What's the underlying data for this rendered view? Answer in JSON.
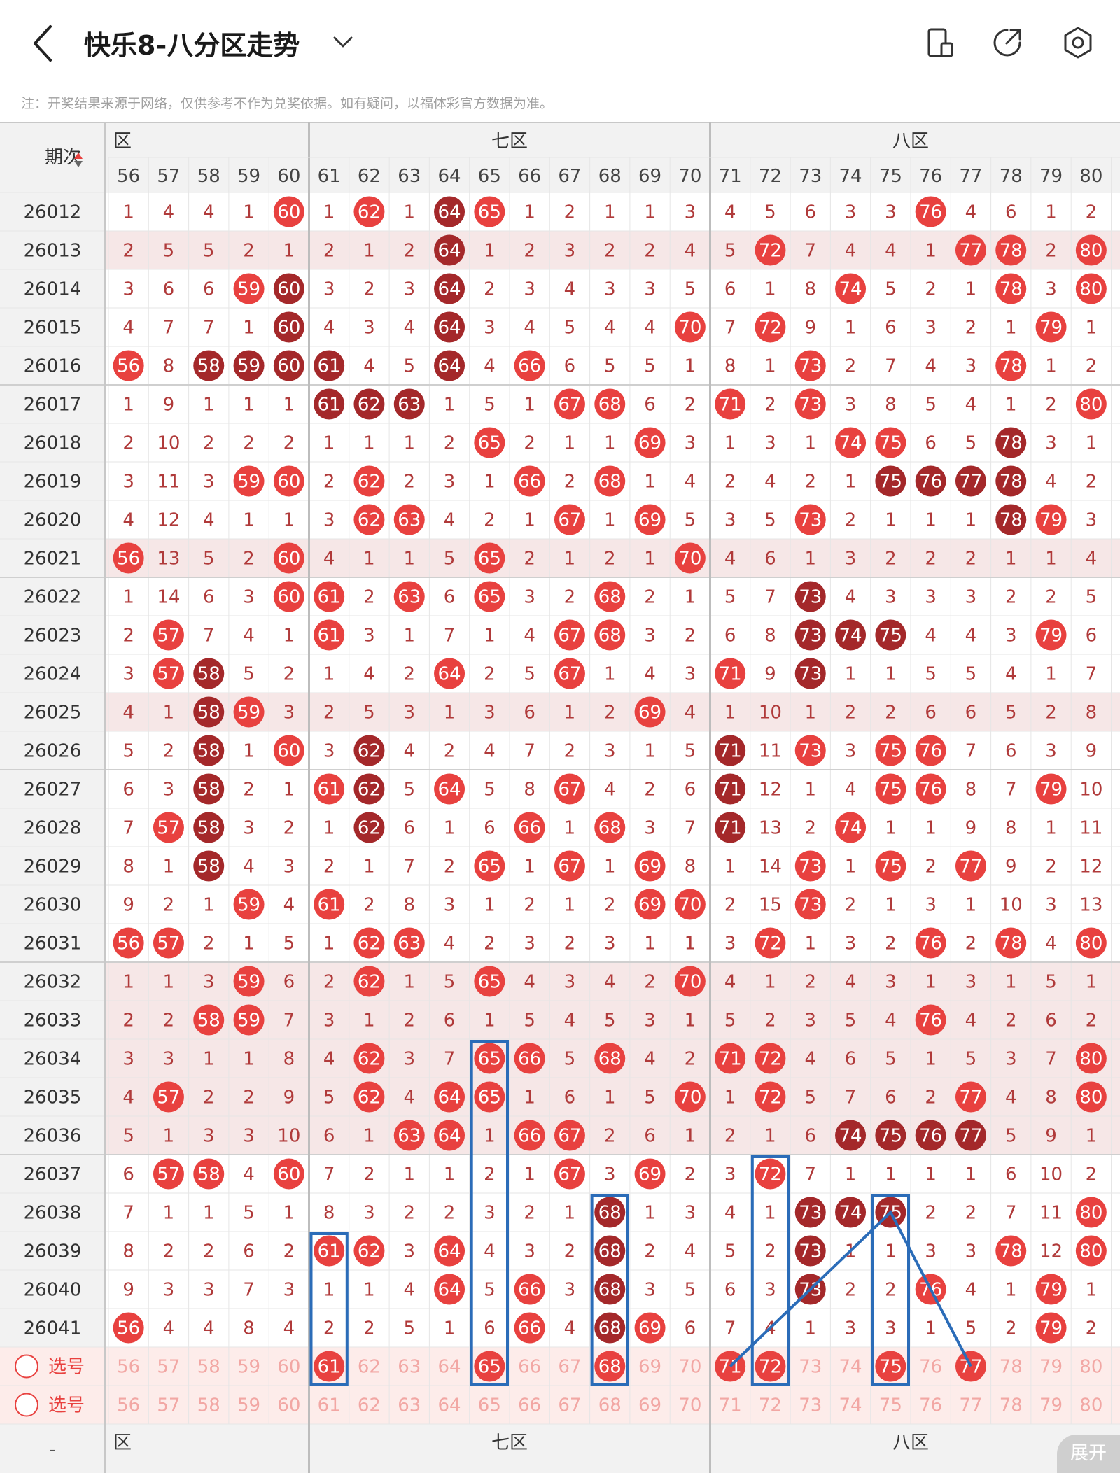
{
  "header": {
    "title": "快乐8-八分区走势",
    "icons": [
      "back-icon",
      "chevron-down-icon",
      "device-icon",
      "share-icon",
      "settings-icon"
    ]
  },
  "note": "注：开奖结果来源于网络，仅供参考不作为兑奖依据。如有疑问，以福体彩官方数据为准。",
  "table": {
    "period_header": "期次",
    "zones": [
      {
        "label": "六区",
        "from": 56,
        "to": 60
      },
      {
        "label": "七区",
        "from": 61,
        "to": 70
      },
      {
        "label": "八区",
        "from": 71,
        "to": 80
      }
    ],
    "columns": [
      56,
      57,
      58,
      59,
      60,
      61,
      62,
      63,
      64,
      65,
      66,
      67,
      68,
      69,
      70,
      71,
      72,
      73,
      74,
      75,
      76,
      77,
      78,
      79,
      80
    ],
    "rows": [
      {
        "p": "26012",
        "v": [
          1,
          4,
          4,
          1,
          60,
          1,
          62,
          1,
          64,
          65,
          1,
          2,
          1,
          1,
          3,
          4,
          5,
          6,
          3,
          3,
          76,
          4,
          6,
          1,
          2
        ]
      },
      {
        "p": "26013",
        "v": [
          2,
          5,
          5,
          2,
          1,
          2,
          1,
          2,
          64,
          1,
          2,
          3,
          2,
          2,
          4,
          5,
          72,
          7,
          4,
          4,
          1,
          77,
          78,
          2,
          80
        ]
      },
      {
        "p": "26014",
        "v": [
          3,
          6,
          6,
          59,
          60,
          3,
          2,
          3,
          64,
          2,
          3,
          4,
          3,
          3,
          5,
          6,
          1,
          8,
          74,
          5,
          2,
          1,
          78,
          3,
          80
        ]
      },
      {
        "p": "26015",
        "v": [
          4,
          7,
          7,
          1,
          60,
          4,
          3,
          4,
          64,
          3,
          4,
          5,
          4,
          4,
          70,
          7,
          72,
          9,
          1,
          6,
          3,
          2,
          1,
          79,
          1
        ]
      },
      {
        "p": "26016",
        "v": [
          56,
          8,
          58,
          59,
          60,
          61,
          4,
          5,
          64,
          4,
          66,
          6,
          5,
          5,
          1,
          8,
          1,
          73,
          2,
          7,
          4,
          3,
          78,
          1,
          2
        ]
      },
      {
        "p": "26017",
        "v": [
          1,
          9,
          1,
          1,
          1,
          61,
          62,
          63,
          1,
          5,
          1,
          67,
          68,
          6,
          2,
          71,
          2,
          73,
          3,
          8,
          5,
          4,
          1,
          2,
          80
        ]
      },
      {
        "p": "26018",
        "v": [
          2,
          10,
          2,
          2,
          2,
          1,
          1,
          1,
          2,
          65,
          2,
          1,
          1,
          69,
          3,
          1,
          3,
          1,
          74,
          75,
          6,
          5,
          78,
          3,
          1
        ]
      },
      {
        "p": "26019",
        "v": [
          3,
          11,
          3,
          59,
          60,
          2,
          62,
          2,
          3,
          1,
          66,
          2,
          68,
          1,
          4,
          2,
          4,
          2,
          1,
          75,
          76,
          77,
          78,
          4,
          2
        ]
      },
      {
        "p": "26020",
        "v": [
          4,
          12,
          4,
          1,
          1,
          3,
          62,
          63,
          4,
          2,
          1,
          67,
          1,
          69,
          5,
          3,
          5,
          73,
          2,
          1,
          1,
          1,
          78,
          79,
          3
        ]
      },
      {
        "p": "26021",
        "v": [
          56,
          13,
          5,
          2,
          60,
          4,
          1,
          1,
          5,
          65,
          2,
          1,
          2,
          1,
          70,
          4,
          6,
          1,
          3,
          2,
          2,
          2,
          1,
          1,
          4
        ]
      },
      {
        "p": "26022",
        "v": [
          1,
          14,
          6,
          3,
          60,
          61,
          2,
          63,
          6,
          65,
          3,
          2,
          68,
          2,
          1,
          5,
          7,
          73,
          4,
          3,
          3,
          3,
          2,
          2,
          5
        ]
      },
      {
        "p": "26023",
        "v": [
          2,
          57,
          7,
          4,
          1,
          61,
          3,
          1,
          7,
          1,
          4,
          67,
          68,
          3,
          2,
          6,
          8,
          73,
          74,
          75,
          4,
          4,
          3,
          79,
          6
        ]
      },
      {
        "p": "26024",
        "v": [
          3,
          57,
          58,
          5,
          2,
          1,
          4,
          2,
          64,
          2,
          5,
          67,
          1,
          4,
          3,
          71,
          9,
          73,
          1,
          1,
          5,
          5,
          4,
          1,
          7
        ]
      },
      {
        "p": "26025",
        "v": [
          4,
          1,
          58,
          59,
          3,
          2,
          5,
          3,
          1,
          3,
          6,
          1,
          2,
          69,
          4,
          1,
          10,
          1,
          2,
          2,
          6,
          6,
          5,
          2,
          8
        ]
      },
      {
        "p": "26026",
        "v": [
          5,
          2,
          58,
          1,
          60,
          3,
          62,
          4,
          2,
          4,
          7,
          2,
          3,
          1,
          5,
          71,
          11,
          73,
          3,
          75,
          76,
          7,
          6,
          3,
          9
        ]
      },
      {
        "p": "26027",
        "v": [
          6,
          3,
          58,
          2,
          1,
          61,
          62,
          5,
          64,
          5,
          8,
          67,
          4,
          2,
          6,
          71,
          12,
          1,
          4,
          75,
          76,
          8,
          7,
          79,
          10
        ]
      },
      {
        "p": "26028",
        "v": [
          7,
          57,
          58,
          3,
          2,
          1,
          62,
          6,
          1,
          6,
          66,
          1,
          68,
          3,
          7,
          71,
          13,
          2,
          74,
          1,
          1,
          9,
          8,
          1,
          11
        ]
      },
      {
        "p": "26029",
        "v": [
          8,
          1,
          58,
          4,
          3,
          2,
          1,
          7,
          2,
          65,
          1,
          67,
          1,
          69,
          8,
          1,
          14,
          73,
          1,
          75,
          2,
          77,
          9,
          2,
          12
        ]
      },
      {
        "p": "26030",
        "v": [
          9,
          2,
          1,
          59,
          4,
          61,
          2,
          8,
          3,
          1,
          2,
          1,
          2,
          69,
          70,
          2,
          15,
          73,
          2,
          1,
          3,
          1,
          10,
          3,
          13
        ]
      },
      {
        "p": "26031",
        "v": [
          56,
          57,
          2,
          1,
          5,
          1,
          62,
          63,
          4,
          2,
          3,
          2,
          3,
          1,
          1,
          3,
          72,
          1,
          3,
          2,
          76,
          2,
          78,
          4,
          80
        ]
      },
      {
        "p": "26032",
        "v": [
          1,
          1,
          3,
          59,
          6,
          2,
          62,
          1,
          5,
          65,
          4,
          3,
          4,
          2,
          70,
          4,
          1,
          2,
          4,
          3,
          1,
          3,
          1,
          5,
          1
        ]
      },
      {
        "p": "26033",
        "v": [
          2,
          2,
          58,
          59,
          7,
          3,
          1,
          2,
          6,
          1,
          5,
          4,
          5,
          3,
          1,
          5,
          2,
          3,
          5,
          4,
          76,
          4,
          2,
          6,
          2
        ]
      },
      {
        "p": "26034",
        "v": [
          3,
          3,
          1,
          1,
          8,
          4,
          62,
          3,
          7,
          65,
          66,
          5,
          68,
          4,
          2,
          71,
          72,
          4,
          6,
          5,
          1,
          5,
          3,
          7,
          80
        ]
      },
      {
        "p": "26035",
        "v": [
          4,
          57,
          2,
          2,
          9,
          5,
          62,
          4,
          64,
          65,
          1,
          6,
          1,
          5,
          70,
          1,
          72,
          5,
          7,
          6,
          2,
          77,
          4,
          8,
          80
        ]
      },
      {
        "p": "26036",
        "v": [
          5,
          1,
          3,
          3,
          10,
          6,
          1,
          63,
          64,
          1,
          66,
          67,
          2,
          6,
          1,
          2,
          1,
          6,
          74,
          75,
          76,
          77,
          5,
          9,
          1
        ]
      },
      {
        "p": "26037",
        "v": [
          6,
          57,
          58,
          4,
          60,
          7,
          2,
          1,
          1,
          2,
          1,
          67,
          3,
          69,
          2,
          3,
          72,
          7,
          1,
          1,
          1,
          1,
          6,
          10,
          2
        ]
      },
      {
        "p": "26038",
        "v": [
          7,
          1,
          1,
          5,
          1,
          8,
          3,
          2,
          2,
          3,
          2,
          1,
          68,
          1,
          3,
          4,
          1,
          73,
          74,
          75,
          2,
          2,
          7,
          11,
          80
        ]
      },
      {
        "p": "26039",
        "v": [
          8,
          2,
          2,
          6,
          2,
          61,
          62,
          3,
          64,
          4,
          3,
          2,
          68,
          2,
          4,
          5,
          2,
          73,
          1,
          1,
          3,
          3,
          78,
          12,
          80
        ]
      },
      {
        "p": "26040",
        "v": [
          9,
          3,
          3,
          7,
          3,
          1,
          1,
          4,
          64,
          5,
          66,
          3,
          68,
          3,
          5,
          6,
          3,
          73,
          2,
          2,
          76,
          4,
          1,
          79,
          1
        ]
      },
      {
        "p": "26041",
        "v": [
          56,
          4,
          4,
          8,
          4,
          2,
          2,
          5,
          1,
          6,
          66,
          4,
          68,
          69,
          6,
          7,
          4,
          1,
          3,
          3,
          1,
          5,
          2,
          79,
          2
        ]
      }
    ],
    "dark_cells": [
      [
        "26012",
        64
      ],
      [
        "26013",
        64
      ],
      [
        "26014",
        60
      ],
      [
        "26014",
        64
      ],
      [
        "26015",
        60
      ],
      [
        "26015",
        64
      ],
      [
        "26016",
        58
      ],
      [
        "26016",
        59
      ],
      [
        "26016",
        60
      ],
      [
        "26016",
        61
      ],
      [
        "26016",
        64
      ],
      [
        "26017",
        61
      ],
      [
        "26017",
        62
      ],
      [
        "26017",
        63
      ],
      [
        "26018",
        78
      ],
      [
        "26019",
        75
      ],
      [
        "26019",
        76
      ],
      [
        "26019",
        77
      ],
      [
        "26019",
        78
      ],
      [
        "26020",
        78
      ],
      [
        "26022",
        73
      ],
      [
        "26023",
        73
      ],
      [
        "26023",
        74
      ],
      [
        "26023",
        75
      ],
      [
        "26024",
        58
      ],
      [
        "26024",
        73
      ],
      [
        "26025",
        58
      ],
      [
        "26026",
        58
      ],
      [
        "26026",
        62
      ],
      [
        "26026",
        71
      ],
      [
        "26027",
        58
      ],
      [
        "26027",
        62
      ],
      [
        "26027",
        71
      ],
      [
        "26028",
        58
      ],
      [
        "26028",
        62
      ],
      [
        "26028",
        71
      ],
      [
        "26029",
        58
      ],
      [
        "26036",
        74
      ],
      [
        "26036",
        75
      ],
      [
        "26036",
        76
      ],
      [
        "26036",
        77
      ],
      [
        "26038",
        68
      ],
      [
        "26038",
        73
      ],
      [
        "26038",
        74
      ],
      [
        "26038",
        75
      ],
      [
        "26039",
        68
      ],
      [
        "26039",
        73
      ],
      [
        "26040",
        68
      ],
      [
        "26040",
        73
      ],
      [
        "26041",
        68
      ]
    ],
    "selected_row": {
      "label": "选号",
      "highlight": [
        61,
        65,
        68,
        71,
        72,
        75,
        77
      ]
    },
    "select_row_2": {
      "label": "选号"
    },
    "shaded_rows": [
      "26013",
      "26021",
      "26025",
      "26032",
      "26033",
      "26034",
      "26035",
      "26036"
    ],
    "footer_zones": [
      "六区",
      "七区",
      "八区"
    ],
    "footer_dash": "-"
  },
  "fab_label": "展开",
  "colors": {
    "red": "#e8413f",
    "dark": "#a4282a",
    "num": "#b03a3a",
    "blue_annotation": "#2b6cb8",
    "grid": "#e6e6e6",
    "zone_divider": "#bdbdbd",
    "shade_row": "#f6e7e7",
    "select_bg": "#fdecea"
  }
}
